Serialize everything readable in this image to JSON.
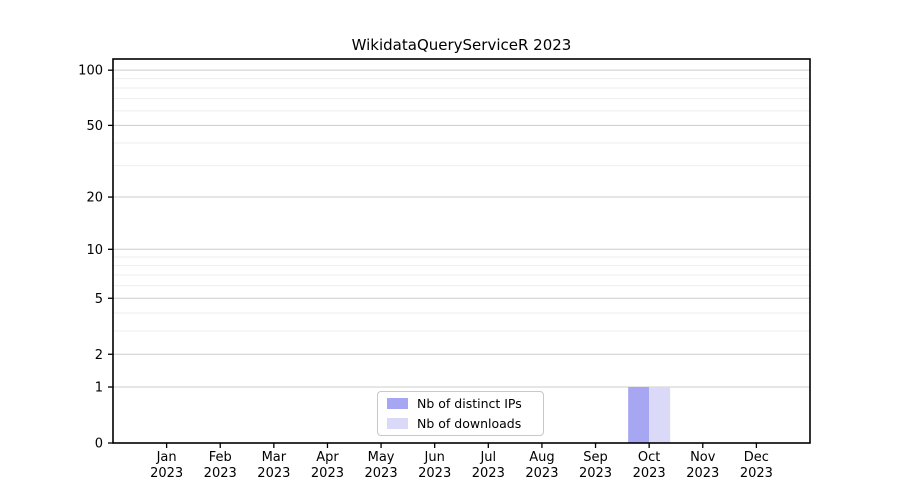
{
  "colors": {
    "background": "#ffffff",
    "axis": "#000000",
    "grid_major": "#cccccc",
    "grid_minor": "#eeeeee",
    "legend_border": "#c8c8c8",
    "series_ips": "#a6a6f2",
    "series_downloads": "#dadaf8"
  },
  "chart_data": {
    "type": "bar",
    "title": "WikidataQueryServiceR 2023",
    "categories": [
      "Jan",
      "Feb",
      "Mar",
      "Apr",
      "May",
      "Jun",
      "Jul",
      "Aug",
      "Sep",
      "Oct",
      "Nov",
      "Dec"
    ],
    "category_year": "2023",
    "series": [
      {
        "name": "Nb of distinct IPs",
        "color": "#a6a6f2",
        "values": [
          0,
          0,
          0,
          0,
          0,
          0,
          0,
          0,
          0,
          1,
          0,
          0
        ]
      },
      {
        "name": "Nb of downloads",
        "color": "#dadaf8",
        "values": [
          0,
          0,
          0,
          0,
          0,
          0,
          0,
          0,
          0,
          1,
          0,
          0
        ]
      }
    ],
    "xlabel": "",
    "ylabel": "",
    "yscale": "log1p",
    "ylim": [
      0,
      115
    ],
    "yticks": [
      0,
      1,
      2,
      5,
      10,
      20,
      50,
      100
    ],
    "yticks_minor": [
      3,
      4,
      6,
      7,
      8,
      9,
      30,
      40,
      60,
      70,
      80,
      90
    ],
    "grid": true,
    "legend_position": "lower center"
  }
}
